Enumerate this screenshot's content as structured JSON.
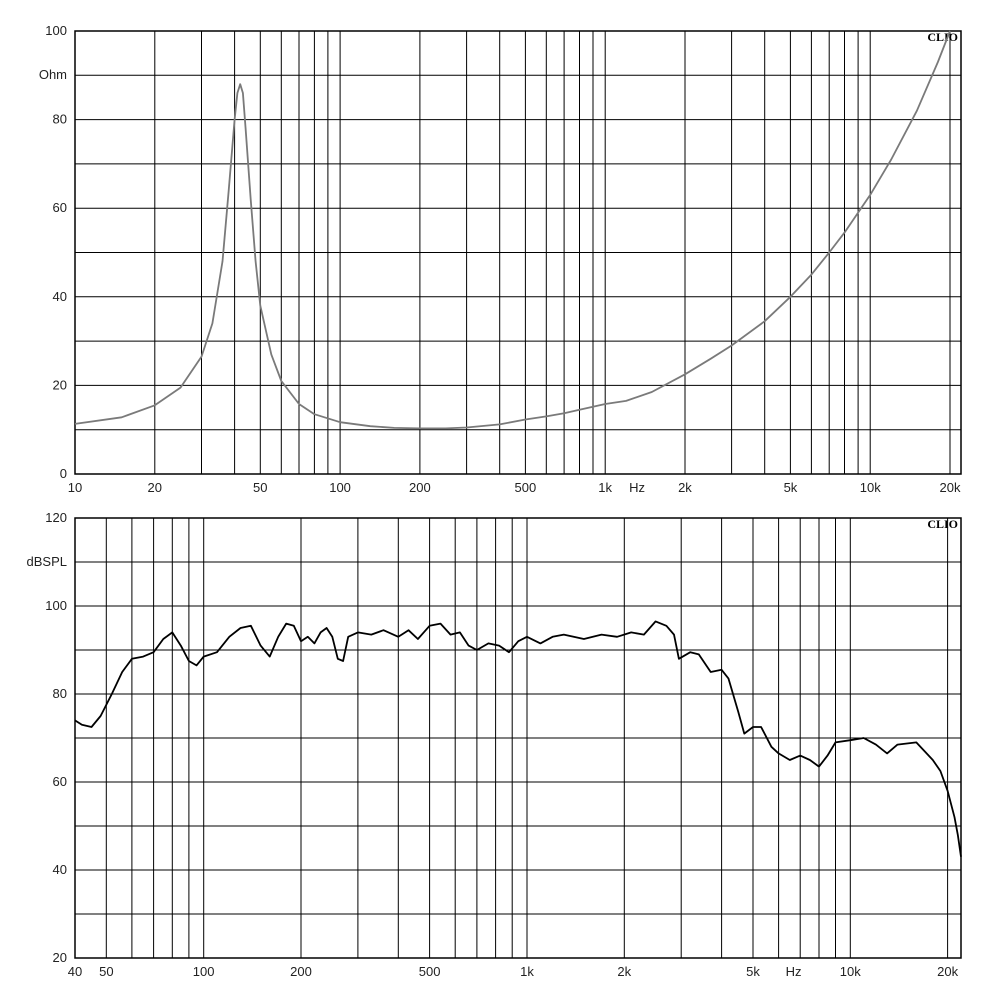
{
  "chart_data": [
    {
      "type": "line",
      "brand": "CLIO",
      "ylabel": "Ohm",
      "xunit_label": "Hz",
      "xscale": "log",
      "xlim": [
        10,
        22000
      ],
      "ylim": [
        0,
        100
      ],
      "grid": true,
      "colors": {
        "line": "#7a7a7a"
      },
      "x_ticks": [
        {
          "value": 10,
          "label": "10"
        },
        {
          "value": 20,
          "label": "20"
        },
        {
          "value": 50,
          "label": "50"
        },
        {
          "value": 100,
          "label": "100"
        },
        {
          "value": 200,
          "label": "200"
        },
        {
          "value": 500,
          "label": "500"
        },
        {
          "value": 1000,
          "label": "1k"
        },
        {
          "value": 2000,
          "label": "2k"
        },
        {
          "value": 5000,
          "label": "5k"
        },
        {
          "value": 10000,
          "label": "10k"
        },
        {
          "value": 20000,
          "label": "20k"
        }
      ],
      "y_ticks": [
        {
          "value": 0,
          "label": "0"
        },
        {
          "value": 20,
          "label": "20"
        },
        {
          "value": 40,
          "label": "40"
        },
        {
          "value": 60,
          "label": "60"
        },
        {
          "value": 80,
          "label": "80"
        },
        {
          "value": 100,
          "label": "100"
        }
      ],
      "series": [
        {
          "x": [
            10,
            15,
            20,
            25,
            30,
            33,
            36,
            38,
            40,
            41,
            42,
            43,
            44,
            46,
            48,
            50,
            55,
            60,
            70,
            80,
            100,
            130,
            160,
            200,
            250,
            300,
            400,
            500,
            600,
            700,
            800,
            900,
            1000,
            1200,
            1500,
            2000,
            2500,
            3000,
            4000,
            5000,
            6000,
            7000,
            8000,
            10000,
            12000,
            15000,
            18000,
            20000
          ],
          "y": [
            11.3,
            12.8,
            15.5,
            19.5,
            26.5,
            34,
            48,
            64,
            80,
            86,
            88,
            86,
            78,
            62,
            48,
            38,
            27,
            21,
            15.8,
            13.5,
            11.7,
            10.8,
            10.4,
            10.3,
            10.3,
            10.5,
            11.2,
            12.3,
            13,
            13.7,
            14.5,
            15.2,
            15.8,
            16.5,
            18.5,
            22.5,
            26,
            29,
            34.5,
            40,
            45,
            50,
            54.5,
            63,
            71,
            82,
            93,
            100
          ]
        }
      ]
    },
    {
      "type": "line",
      "brand": "CLIO",
      "ylabel": "dBSPL",
      "xunit_label": "Hz",
      "xscale": "log",
      "xlim": [
        40,
        22000
      ],
      "ylim": [
        20,
        120
      ],
      "grid": true,
      "colors": {
        "line": "#000000"
      },
      "x_ticks": [
        {
          "value": 40,
          "label": "40"
        },
        {
          "value": 50,
          "label": "50"
        },
        {
          "value": 100,
          "label": "100"
        },
        {
          "value": 200,
          "label": "200"
        },
        {
          "value": 500,
          "label": "500"
        },
        {
          "value": 1000,
          "label": "1k"
        },
        {
          "value": 2000,
          "label": "2k"
        },
        {
          "value": 5000,
          "label": "5k"
        },
        {
          "value": 10000,
          "label": "10k"
        },
        {
          "value": 20000,
          "label": "20k"
        }
      ],
      "y_ticks": [
        {
          "value": 20,
          "label": "20"
        },
        {
          "value": 40,
          "label": "40"
        },
        {
          "value": 60,
          "label": "60"
        },
        {
          "value": 80,
          "label": "80"
        },
        {
          "value": 100,
          "label": "100"
        },
        {
          "value": 120,
          "label": "120"
        }
      ],
      "series": [
        {
          "x": [
            40,
            42,
            45,
            48,
            52,
            56,
            60,
            65,
            70,
            75,
            80,
            85,
            90,
            95,
            100,
            110,
            120,
            130,
            140,
            150,
            160,
            170,
            180,
            190,
            200,
            210,
            220,
            230,
            240,
            250,
            260,
            270,
            280,
            300,
            330,
            360,
            400,
            430,
            460,
            500,
            540,
            580,
            620,
            660,
            700,
            760,
            820,
            880,
            940,
            1000,
            1100,
            1200,
            1300,
            1500,
            1700,
            1900,
            2100,
            2300,
            2500,
            2700,
            2850,
            2950,
            3200,
            3400,
            3700,
            4000,
            4200,
            4500,
            4700,
            5000,
            5300,
            5700,
            6000,
            6500,
            7000,
            7500,
            8000,
            8500,
            9000,
            10000,
            11000,
            12000,
            13000,
            14000,
            16000,
            18000,
            19000,
            20000,
            21000,
            21500,
            22000
          ],
          "y": [
            74,
            73,
            72.5,
            75,
            80,
            85,
            88,
            88.5,
            89.5,
            92.5,
            94,
            91,
            87.5,
            86.5,
            88.5,
            89.5,
            93,
            95,
            95.5,
            91,
            88.5,
            93,
            96,
            95.5,
            92,
            93,
            91.5,
            94,
            95,
            93,
            88,
            87.5,
            93,
            94,
            93.5,
            94.5,
            93,
            94.5,
            92.5,
            95.5,
            96,
            93.5,
            94,
            91,
            90,
            91.5,
            91,
            89.5,
            92,
            93,
            91.5,
            93,
            93.5,
            92.5,
            93.5,
            93,
            94,
            93.5,
            96.5,
            95.5,
            93.5,
            88,
            89.5,
            89,
            85,
            85.5,
            83.5,
            76,
            71,
            72.5,
            72.5,
            68,
            66.5,
            65,
            66,
            65,
            63.5,
            66,
            69,
            69.5,
            70,
            68.5,
            66.5,
            68.5,
            69,
            65,
            62.5,
            58,
            52,
            48,
            43
          ]
        }
      ]
    }
  ]
}
